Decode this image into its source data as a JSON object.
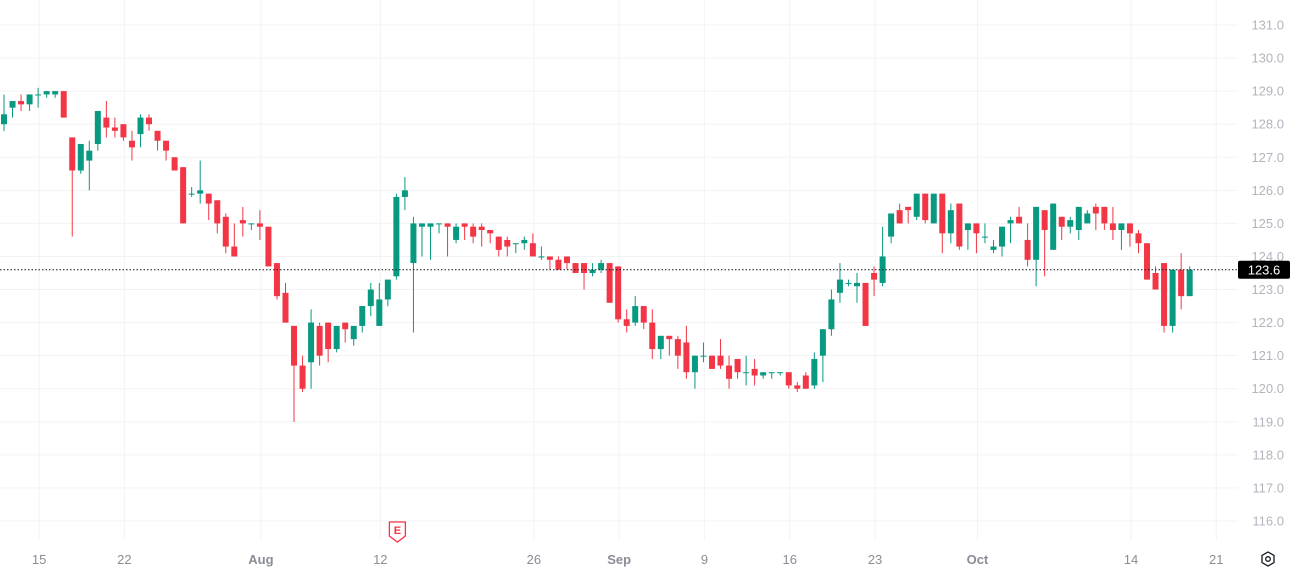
{
  "chart_data": {
    "type": "candlestick",
    "title": "",
    "xlabel": "",
    "ylabel": "",
    "ylim": [
      116.0,
      131.0
    ],
    "y_ticks": [
      "131.0",
      "130.0",
      "129.0",
      "128.0",
      "127.0",
      "126.0",
      "125.0",
      "124.0",
      "123.0",
      "122.0",
      "121.0",
      "120.0",
      "119.0",
      "118.0",
      "117.0",
      "116.0"
    ],
    "x_ticks": [
      {
        "label": "15",
        "index": 4,
        "major": false
      },
      {
        "label": "22",
        "index": 14,
        "major": false
      },
      {
        "label": "Aug",
        "index": 30,
        "major": true
      },
      {
        "label": "12",
        "index": 44,
        "major": false
      },
      {
        "label": "26",
        "index": 62,
        "major": false
      },
      {
        "label": "Sep",
        "index": 72,
        "major": true
      },
      {
        "label": "9",
        "index": 82,
        "major": false
      },
      {
        "label": "16",
        "index": 92,
        "major": false
      },
      {
        "label": "23",
        "index": 102,
        "major": false
      },
      {
        "label": "Oct",
        "index": 114,
        "major": true
      },
      {
        "label": "14",
        "index": 132,
        "major": false
      },
      {
        "label": "21",
        "index": 142,
        "major": false
      }
    ],
    "grid": true,
    "colors": {
      "up": "#089981",
      "down": "#F23645",
      "last_price_bg": "#000000"
    },
    "last_price": "123.6",
    "earnings_marker": {
      "label": "E",
      "index": 46
    },
    "ohlc": [
      [
        128.0,
        128.9,
        127.8,
        128.3
      ],
      [
        128.5,
        128.7,
        128.2,
        128.7
      ],
      [
        128.7,
        128.9,
        128.4,
        128.6
      ],
      [
        128.6,
        128.9,
        128.4,
        128.9
      ],
      [
        128.9,
        129.1,
        128.5,
        128.9
      ],
      [
        128.9,
        129.0,
        128.8,
        129.0
      ],
      [
        128.9,
        129.0,
        128.8,
        129.0
      ],
      [
        129.0,
        129.0,
        128.2,
        128.2
      ],
      [
        127.6,
        127.6,
        124.6,
        126.6
      ],
      [
        126.6,
        127.4,
        126.5,
        127.4
      ],
      [
        126.9,
        127.5,
        126.0,
        127.2
      ],
      [
        127.4,
        128.4,
        127.2,
        128.4
      ],
      [
        128.2,
        128.7,
        127.6,
        127.9
      ],
      [
        127.9,
        128.2,
        127.6,
        127.8
      ],
      [
        128.0,
        128.0,
        127.5,
        127.6
      ],
      [
        127.5,
        127.8,
        126.9,
        127.3
      ],
      [
        127.7,
        128.3,
        127.3,
        128.2
      ],
      [
        128.2,
        128.3,
        127.8,
        128.0
      ],
      [
        127.8,
        127.8,
        127.2,
        127.5
      ],
      [
        127.5,
        127.5,
        126.9,
        127.2
      ],
      [
        127.0,
        127.0,
        126.6,
        126.6
      ],
      [
        126.7,
        126.7,
        125.0,
        125.0
      ],
      [
        125.9,
        126.1,
        125.8,
        125.9
      ],
      [
        125.9,
        126.9,
        125.6,
        126.0
      ],
      [
        125.9,
        125.9,
        125.1,
        125.6
      ],
      [
        125.7,
        125.7,
        124.7,
        125.0
      ],
      [
        125.2,
        125.3,
        124.1,
        124.3
      ],
      [
        124.3,
        125.0,
        124.0,
        124.0
      ],
      [
        125.1,
        125.5,
        124.6,
        125.0
      ],
      [
        125.0,
        125.0,
        124.8,
        125.0
      ],
      [
        125.0,
        125.4,
        124.5,
        124.9
      ],
      [
        124.9,
        124.9,
        123.7,
        123.7
      ],
      [
        123.8,
        123.8,
        122.7,
        122.8
      ],
      [
        122.9,
        123.2,
        122.0,
        122.0
      ],
      [
        121.9,
        121.9,
        119.0,
        120.7
      ],
      [
        120.7,
        121.0,
        119.9,
        120.0
      ],
      [
        120.8,
        122.4,
        120.0,
        122.0
      ],
      [
        121.9,
        122.0,
        120.7,
        121.0
      ],
      [
        122.0,
        122.0,
        120.8,
        121.2
      ],
      [
        121.2,
        121.9,
        121.1,
        121.9
      ],
      [
        122.0,
        122.0,
        121.4,
        121.8
      ],
      [
        121.5,
        121.9,
        121.3,
        121.9
      ],
      [
        121.9,
        122.5,
        121.7,
        122.5
      ],
      [
        122.5,
        123.2,
        122.2,
        123.0
      ],
      [
        121.9,
        123.2,
        121.9,
        122.7
      ],
      [
        122.7,
        123.3,
        122.5,
        123.3
      ],
      [
        123.4,
        125.9,
        123.3,
        125.8
      ],
      [
        125.8,
        126.4,
        125.4,
        126.0
      ],
      [
        123.8,
        125.2,
        121.7,
        125.0
      ],
      [
        124.9,
        125.0,
        124.0,
        125.0
      ],
      [
        124.9,
        125.0,
        123.9,
        125.0
      ],
      [
        125.0,
        125.0,
        124.7,
        125.0
      ],
      [
        125.0,
        125.0,
        124.0,
        124.9
      ],
      [
        124.5,
        125.0,
        124.4,
        124.9
      ],
      [
        125.0,
        125.0,
        124.5,
        124.9
      ],
      [
        124.9,
        125.0,
        124.4,
        124.6
      ],
      [
        124.9,
        125.0,
        124.3,
        124.8
      ],
      [
        124.8,
        124.8,
        124.4,
        124.7
      ],
      [
        124.6,
        124.6,
        124.0,
        124.2
      ],
      [
        124.5,
        124.6,
        124.0,
        124.3
      ],
      [
        124.4,
        124.4,
        124.1,
        124.4
      ],
      [
        124.4,
        124.6,
        124.2,
        124.5
      ],
      [
        124.4,
        124.7,
        124.0,
        124.0
      ],
      [
        124.0,
        124.3,
        123.9,
        124.0
      ],
      [
        124.0,
        124.0,
        123.6,
        123.9
      ],
      [
        123.9,
        124.0,
        123.6,
        123.6
      ],
      [
        124.0,
        124.0,
        123.6,
        123.8
      ],
      [
        123.8,
        123.8,
        123.5,
        123.5
      ],
      [
        123.8,
        123.8,
        123.0,
        123.5
      ],
      [
        123.5,
        123.8,
        123.4,
        123.6
      ],
      [
        123.6,
        123.9,
        123.5,
        123.8
      ],
      [
        123.8,
        123.8,
        122.6,
        122.6
      ],
      [
        123.7,
        123.7,
        122.0,
        122.1
      ],
      [
        122.1,
        122.4,
        121.7,
        121.9
      ],
      [
        122.0,
        122.8,
        121.9,
        122.5
      ],
      [
        122.5,
        122.5,
        121.8,
        122.0
      ],
      [
        122.0,
        122.4,
        120.9,
        121.2
      ],
      [
        121.2,
        121.6,
        120.9,
        121.6
      ],
      [
        121.6,
        121.6,
        121.0,
        121.5
      ],
      [
        121.5,
        121.6,
        120.6,
        121.0
      ],
      [
        121.4,
        121.9,
        120.3,
        120.5
      ],
      [
        120.5,
        121.0,
        120.0,
        121.0
      ],
      [
        121.0,
        121.4,
        120.8,
        121.0
      ],
      [
        121.0,
        121.0,
        120.6,
        120.6
      ],
      [
        121.0,
        121.5,
        120.6,
        120.7
      ],
      [
        120.7,
        121.0,
        120.0,
        120.3
      ],
      [
        120.9,
        120.9,
        120.3,
        120.5
      ],
      [
        120.5,
        121.0,
        120.1,
        120.5
      ],
      [
        120.6,
        120.9,
        120.1,
        120.4
      ],
      [
        120.4,
        120.5,
        120.3,
        120.5
      ],
      [
        120.5,
        120.5,
        120.3,
        120.5
      ],
      [
        120.5,
        120.5,
        120.4,
        120.5
      ],
      [
        120.5,
        120.5,
        120.0,
        120.1
      ],
      [
        120.1,
        120.2,
        119.9,
        120.0
      ],
      [
        120.4,
        120.5,
        120.0,
        120.0
      ],
      [
        120.1,
        121.1,
        120.0,
        120.9
      ],
      [
        121.0,
        121.8,
        120.2,
        121.8
      ],
      [
        121.8,
        123.0,
        121.6,
        122.7
      ],
      [
        122.9,
        123.8,
        122.6,
        123.3
      ],
      [
        123.2,
        123.3,
        123.1,
        123.2
      ],
      [
        123.1,
        123.5,
        122.6,
        123.2
      ],
      [
        123.2,
        123.2,
        121.9,
        121.9
      ],
      [
        123.5,
        123.7,
        122.8,
        123.3
      ],
      [
        123.2,
        124.9,
        123.1,
        124.0
      ],
      [
        124.6,
        125.3,
        124.4,
        125.3
      ],
      [
        125.4,
        125.6,
        125.0,
        125.0
      ],
      [
        125.5,
        125.5,
        125.0,
        125.4
      ],
      [
        125.2,
        125.9,
        125.1,
        125.9
      ],
      [
        125.9,
        125.9,
        125.0,
        125.1
      ],
      [
        125.0,
        125.9,
        125.0,
        125.9
      ],
      [
        125.9,
        125.9,
        124.1,
        124.7
      ],
      [
        124.7,
        125.6,
        124.4,
        125.4
      ],
      [
        125.6,
        125.6,
        124.2,
        124.3
      ],
      [
        124.8,
        125.0,
        124.2,
        125.0
      ],
      [
        125.0,
        125.0,
        124.1,
        124.7
      ],
      [
        124.6,
        125.0,
        124.4,
        124.6
      ],
      [
        124.2,
        124.5,
        124.1,
        124.3
      ],
      [
        124.3,
        124.9,
        124.0,
        124.9
      ],
      [
        125.0,
        125.2,
        124.4,
        125.1
      ],
      [
        125.2,
        125.5,
        125.0,
        125.0
      ],
      [
        124.5,
        125.0,
        123.7,
        123.9
      ],
      [
        123.9,
        125.5,
        123.1,
        125.5
      ],
      [
        125.4,
        125.4,
        123.4,
        124.8
      ],
      [
        124.2,
        125.6,
        124.2,
        125.6
      ],
      [
        125.2,
        125.2,
        124.5,
        124.9
      ],
      [
        124.9,
        125.2,
        124.7,
        125.1
      ],
      [
        124.8,
        125.5,
        124.5,
        125.5
      ],
      [
        125.0,
        125.4,
        125.0,
        125.3
      ],
      [
        125.5,
        125.6,
        124.8,
        125.3
      ],
      [
        125.5,
        125.5,
        124.8,
        125.0
      ],
      [
        125.0,
        125.5,
        124.5,
        124.8
      ],
      [
        124.8,
        125.0,
        124.2,
        125.0
      ],
      [
        125.0,
        125.0,
        124.3,
        124.7
      ],
      [
        124.7,
        124.8,
        124.1,
        124.4
      ],
      [
        124.4,
        124.4,
        123.3,
        123.3
      ],
      [
        123.5,
        123.7,
        123.0,
        123.0
      ],
      [
        123.8,
        123.8,
        121.7,
        121.9
      ],
      [
        121.9,
        123.6,
        121.7,
        123.6
      ],
      [
        123.6,
        124.1,
        122.4,
        122.8
      ],
      [
        122.8,
        123.7,
        122.8,
        123.6
      ]
    ]
  },
  "icons": {
    "settings": "gear-hexagon-icon"
  }
}
